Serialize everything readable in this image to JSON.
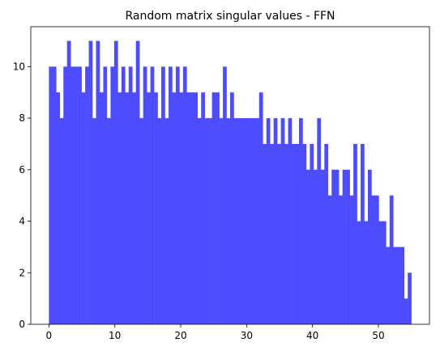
{
  "chart_data": {
    "type": "histogram",
    "title": "Random matrix singular values - FFN",
    "bins": [
      0,
      0.55,
      1.1,
      1.65,
      2.2,
      2.75,
      3.3,
      3.85,
      4.4,
      4.95,
      5.5,
      6.05,
      6.6,
      7.15,
      7.7,
      8.25,
      8.8,
      9.35,
      9.9,
      10.45,
      11,
      11.55,
      12.1,
      12.65,
      13.2,
      13.75,
      14.3,
      14.85,
      15.4,
      15.95,
      16.5,
      17.05,
      17.6,
      18.15,
      18.7,
      19.25,
      19.8,
      20.35,
      20.9,
      21.45,
      22,
      22.55,
      23.1,
      23.65,
      24.2,
      24.75,
      25.3,
      25.85,
      26.4,
      26.95,
      27.5,
      28.05,
      28.6,
      29.15,
      29.7,
      30.25,
      30.8,
      31.35,
      31.9,
      32.45,
      33,
      33.55,
      34.1,
      34.65,
      35.2,
      35.75,
      36.3,
      36.85,
      37.4,
      37.95,
      38.5,
      39.05,
      39.6,
      40.15,
      40.7,
      41.25,
      41.8,
      42.35,
      42.9,
      43.45,
      44,
      44.55,
      45.1,
      45.65,
      46.2,
      46.75,
      47.3,
      47.85,
      48.4,
      48.95,
      49.5,
      50.05,
      50.6,
      51.15,
      51.7,
      52.25,
      52.8,
      53.35,
      53.9,
      54.45,
      55
    ],
    "values": [
      10,
      10,
      9,
      8,
      10,
      11,
      10,
      10,
      10,
      9,
      10,
      11,
      8,
      11,
      9,
      10,
      8,
      10,
      11,
      9,
      10,
      9,
      10,
      9,
      11,
      8,
      10,
      9,
      10,
      9,
      8,
      10,
      8,
      10,
      9,
      10,
      9,
      10,
      9,
      9,
      9,
      8,
      9,
      8,
      8,
      9,
      9,
      8,
      10,
      8,
      9,
      8,
      8,
      8,
      8,
      8,
      8,
      8,
      9,
      7,
      8,
      7,
      8,
      7,
      8,
      7,
      8,
      7,
      7,
      8,
      7,
      6,
      7,
      6,
      8,
      6,
      7,
      5,
      6,
      6,
      5,
      6,
      6,
      5,
      7,
      4,
      7,
      4,
      6,
      5,
      5,
      4,
      4,
      3,
      5,
      3,
      3,
      3,
      1,
      2
    ],
    "color": "#4d4dff",
    "xlim": [
      -2.75,
      57.75
    ],
    "xticks": [
      0,
      10,
      20,
      30,
      40,
      50
    ],
    "ylim": [
      0,
      11.55
    ],
    "yticks": [
      0,
      2,
      4,
      6,
      8,
      10
    ]
  }
}
